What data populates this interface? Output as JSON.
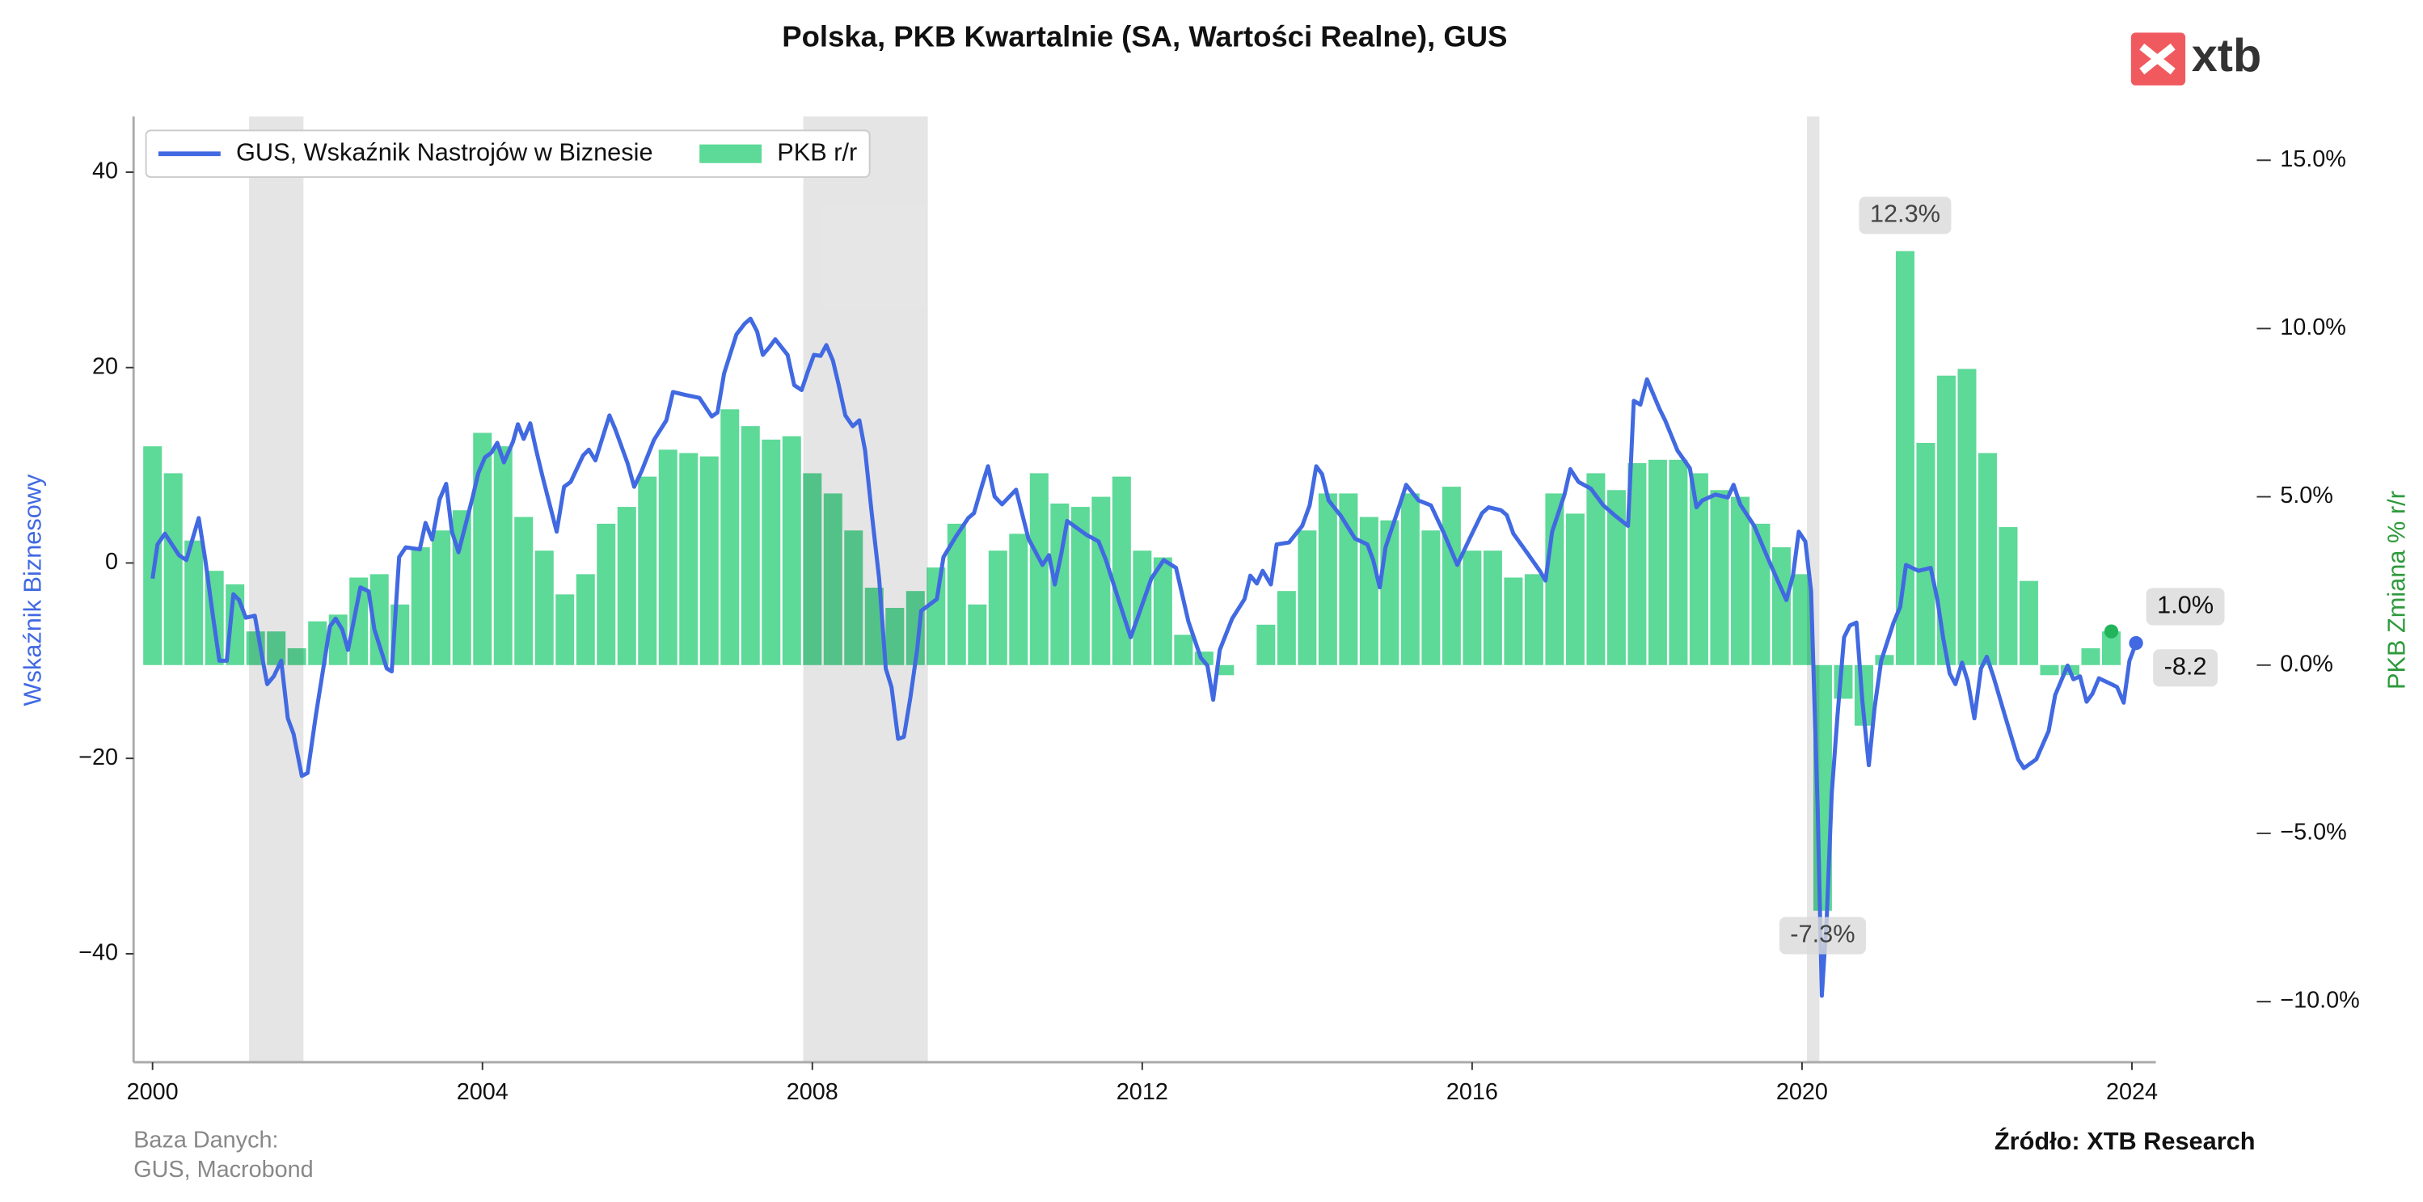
{
  "chart_data": {
    "type": "combo",
    "title": "Polska, PKB Kwartalnie (SA, Wartości Realne), GUS",
    "y_label": "Wskaźnik Biznesowy",
    "y2_label": "PKB Zmiana % r/r",
    "logo": "xtb",
    "source_note": [
      "Baza Danych:",
      "GUS, Macrobond"
    ],
    "source": "Źródło: XTB Research",
    "legend": "upper left",
    "xlim": [
      1999.77,
      2024.29
    ],
    "xticks": [
      2000,
      2004,
      2008,
      2012,
      2016,
      2020,
      2024
    ],
    "ylim": [
      -51.1,
      45.7
    ],
    "yticks": [
      {
        "value": -40,
        "label": "−40"
      },
      {
        "value": -20,
        "label": "−20"
      },
      0,
      20,
      40
    ],
    "y2lim": [
      -11.8,
      16.3
    ],
    "y2ticks": [
      {
        "value": -10,
        "label": "−10.0%"
      },
      {
        "value": -5,
        "label": "−5.0%"
      },
      {
        "value": 0,
        "label": "0.0%"
      },
      {
        "value": 5,
        "label": "5.0%"
      },
      {
        "value": 10,
        "label": "10.0%"
      },
      {
        "value": 15,
        "label": "15.0%"
      }
    ],
    "shaded_ranges": [
      [
        2001.17,
        2001.83
      ],
      [
        2007.89,
        2009.4
      ],
      [
        2020.06,
        2020.21
      ]
    ],
    "series": [
      {
        "name": "GUS, Wskaźnik Nastrojów w Biznesie",
        "type": "line",
        "color": "#4169e1",
        "x": [
          2000.0,
          2000.06,
          2000.15,
          2000.32,
          2000.41,
          2000.56,
          2000.64,
          2000.73,
          2000.81,
          2000.9,
          2000.98,
          2001.05,
          2001.13,
          2001.24,
          2001.32,
          2001.39,
          2001.47,
          2001.56,
          2001.64,
          2001.71,
          2001.81,
          2001.88,
          2001.98,
          2002.07,
          2002.15,
          2002.22,
          2002.3,
          2002.37,
          2002.52,
          2002.62,
          2002.69,
          2002.84,
          2002.9,
          2002.99,
          2003.07,
          2003.24,
          2003.31,
          2003.39,
          2003.48,
          2003.56,
          2003.63,
          2003.71,
          2003.88,
          2003.95,
          2004.03,
          2004.11,
          2004.18,
          2004.26,
          2004.37,
          2004.43,
          2004.5,
          2004.58,
          2004.65,
          2004.73,
          2004.9,
          2004.99,
          2005.07,
          2005.22,
          2005.29,
          2005.37,
          2005.54,
          2005.61,
          2005.76,
          2005.84,
          2005.93,
          2006.08,
          2006.23,
          2006.31,
          2006.46,
          2006.63,
          2006.78,
          2006.85,
          2006.93,
          2007.08,
          2007.18,
          2007.25,
          2007.33,
          2007.4,
          2007.48,
          2007.55,
          2007.7,
          2007.78,
          2007.87,
          2007.95,
          2008.02,
          2008.1,
          2008.17,
          2008.25,
          2008.32,
          2008.4,
          2008.49,
          2008.57,
          2008.64,
          2008.72,
          2008.81,
          2008.89,
          2008.96,
          2009.04,
          2009.11,
          2009.19,
          2009.27,
          2009.32,
          2009.51,
          2009.59,
          2009.74,
          2009.89,
          2009.96,
          2010.06,
          2010.13,
          2010.21,
          2010.3,
          2010.47,
          2010.62,
          2010.79,
          2010.87,
          2010.94,
          2011.02,
          2011.09,
          2011.32,
          2011.47,
          2011.56,
          2011.71,
          2011.86,
          2011.94,
          2012.11,
          2012.26,
          2012.41,
          2012.56,
          2012.71,
          2012.79,
          2012.86,
          2012.94,
          2013.09,
          2013.24,
          2013.31,
          2013.39,
          2013.46,
          2013.56,
          2013.63,
          2013.78,
          2013.94,
          2014.03,
          2014.11,
          2014.18,
          2014.26,
          2014.41,
          2014.58,
          2014.73,
          2014.8,
          2014.88,
          2014.95,
          2015.12,
          2015.2,
          2015.35,
          2015.5,
          2015.65,
          2015.82,
          2015.97,
          2016.12,
          2016.2,
          2016.35,
          2016.42,
          2016.5,
          2016.67,
          2016.82,
          2016.89,
          2016.97,
          2017.12,
          2017.19,
          2017.29,
          2017.44,
          2017.59,
          2017.74,
          2017.89,
          2017.96,
          2018.04,
          2018.12,
          2018.19,
          2018.27,
          2018.34,
          2018.49,
          2018.64,
          2018.72,
          2018.79,
          2018.95,
          2019.1,
          2019.17,
          2019.25,
          2019.42,
          2019.57,
          2019.72,
          2019.81,
          2019.89,
          2019.96,
          2020.04,
          2020.11,
          2020.19,
          2020.24,
          2020.3,
          2020.36,
          2020.43,
          2020.51,
          2020.58,
          2020.66,
          2020.73,
          2020.81,
          2020.88,
          2020.96,
          2021.11,
          2021.19,
          2021.26,
          2021.41,
          2021.56,
          2021.64,
          2021.71,
          2021.79,
          2021.86,
          2021.94,
          2022.01,
          2022.09,
          2022.17,
          2022.24,
          2022.32,
          2022.47,
          2022.62,
          2022.69,
          2022.84,
          2022.99,
          2023.07,
          2023.22,
          2023.29,
          2023.37,
          2023.45,
          2023.52,
          2023.6,
          2023.75,
          2023.82,
          2023.9,
          2023.97,
          2024.05
        ],
        "values": [
          -1.6,
          1.9,
          3.0,
          0.8,
          0.3,
          4.6,
          0.3,
          -5.3,
          -10.0,
          -10.0,
          -3.2,
          -3.8,
          -5.6,
          -5.4,
          -9.2,
          -12.4,
          -11.6,
          -10.0,
          -15.9,
          -17.5,
          -21.8,
          -21.5,
          -15.6,
          -10.8,
          -6.5,
          -5.7,
          -6.8,
          -8.9,
          -2.5,
          -2.9,
          -6.8,
          -10.8,
          -11.1,
          0.6,
          1.6,
          1.4,
          4.1,
          2.4,
          6.5,
          8.1,
          3.2,
          1.1,
          6.7,
          9.2,
          10.8,
          11.3,
          12.3,
          10.3,
          12.4,
          14.2,
          12.7,
          14.3,
          11.6,
          8.8,
          3.2,
          7.8,
          8.3,
          11.0,
          11.6,
          10.5,
          15.1,
          13.7,
          10.2,
          7.8,
          9.4,
          12.6,
          14.6,
          17.5,
          17.2,
          16.9,
          15.0,
          15.4,
          19.4,
          23.4,
          24.5,
          25.0,
          23.7,
          21.3,
          22.1,
          22.9,
          21.3,
          18.2,
          17.7,
          19.7,
          21.3,
          21.2,
          22.3,
          20.7,
          18.2,
          15.1,
          14.0,
          14.6,
          11.5,
          5.1,
          -1.6,
          -10.8,
          -12.7,
          -18.0,
          -17.8,
          -13.7,
          -8.9,
          -4.9,
          -3.7,
          0.6,
          2.7,
          4.6,
          5.1,
          8.0,
          9.9,
          6.8,
          6.0,
          7.5,
          2.5,
          -0.2,
          0.8,
          -2.2,
          1.0,
          4.3,
          2.9,
          2.2,
          0.3,
          -3.7,
          -7.6,
          -5.7,
          -1.6,
          0.3,
          -0.5,
          -6.0,
          -9.7,
          -10.5,
          -14.0,
          -8.9,
          -5.7,
          -3.7,
          -1.3,
          -2.1,
          -0.8,
          -2.2,
          1.9,
          2.1,
          3.8,
          5.9,
          9.9,
          9.1,
          6.4,
          4.8,
          2.5,
          1.9,
          0.3,
          -2.5,
          1.6,
          5.9,
          8.0,
          6.4,
          5.9,
          3.2,
          -0.2,
          2.5,
          5.1,
          5.7,
          5.4,
          4.9,
          3.0,
          1.0,
          -0.8,
          -1.8,
          3.2,
          7.0,
          9.6,
          8.3,
          7.6,
          5.9,
          4.8,
          3.8,
          16.6,
          16.2,
          18.8,
          17.4,
          15.8,
          14.6,
          11.5,
          9.7,
          5.7,
          6.4,
          7.0,
          6.7,
          8.0,
          6.0,
          3.8,
          0.8,
          -2.1,
          -3.8,
          -1.3,
          3.2,
          2.2,
          -2.9,
          -25.2,
          -44.3,
          -36.3,
          -23.6,
          -15.6,
          -7.6,
          -6.4,
          -6.1,
          -14.0,
          -20.7,
          -14.8,
          -10.0,
          -6.1,
          -4.5,
          -0.2,
          -0.8,
          -0.5,
          -3.7,
          -7.6,
          -11.3,
          -12.4,
          -10.2,
          -12.1,
          -15.9,
          -10.8,
          -9.6,
          -11.6,
          -15.9,
          -20.1,
          -21.0,
          -20.1,
          -17.2,
          -13.5,
          -10.5,
          -11.9,
          -11.6,
          -14.2,
          -13.4,
          -11.8,
          -12.4,
          -12.7,
          -14.3,
          -10.0,
          -8.2
        ]
      },
      {
        "name": "PKB r/r",
        "type": "bar",
        "axis": "y2",
        "color": "#5dd998",
        "x": [
          2000,
          2000.25,
          2000.5,
          2000.75,
          2001,
          2001.25,
          2001.5,
          2001.75,
          2002,
          2002.25,
          2002.5,
          2002.75,
          2003,
          2003.25,
          2003.5,
          2003.75,
          2004,
          2004.25,
          2004.5,
          2004.75,
          2005,
          2005.25,
          2005.5,
          2005.75,
          2006,
          2006.25,
          2006.5,
          2006.75,
          2007,
          2007.25,
          2007.5,
          2007.75,
          2008,
          2008.25,
          2008.5,
          2008.75,
          2009,
          2009.25,
          2009.5,
          2009.75,
          2010,
          2010.25,
          2010.5,
          2010.75,
          2011,
          2011.25,
          2011.5,
          2011.75,
          2012,
          2012.25,
          2012.5,
          2012.75,
          2013,
          2013.25,
          2013.5,
          2013.75,
          2014,
          2014.25,
          2014.5,
          2014.75,
          2015,
          2015.25,
          2015.5,
          2015.75,
          2016,
          2016.25,
          2016.5,
          2016.75,
          2017,
          2017.25,
          2017.5,
          2017.75,
          2018,
          2018.25,
          2018.5,
          2018.75,
          2019,
          2019.25,
          2019.5,
          2019.75,
          2020,
          2020.25,
          2020.5,
          2020.75,
          2021,
          2021.25,
          2021.5,
          2021.75,
          2022,
          2022.25,
          2022.5,
          2022.75,
          2023,
          2023.25,
          2023.5,
          2023.75
        ],
        "values": [
          6.5,
          5.7,
          3.7,
          2.8,
          2.4,
          1.0,
          1.0,
          0.5,
          1.3,
          1.5,
          2.6,
          2.7,
          1.8,
          3.5,
          4.0,
          4.6,
          6.9,
          6.5,
          4.4,
          3.4,
          2.1,
          2.7,
          4.2,
          4.7,
          5.6,
          6.4,
          6.3,
          6.2,
          7.6,
          7.1,
          6.7,
          6.8,
          5.7,
          5.1,
          4.0,
          2.3,
          1.7,
          2.2,
          2.9,
          4.2,
          1.8,
          3.4,
          3.9,
          5.7,
          4.8,
          4.7,
          5.0,
          5.6,
          3.4,
          3.2,
          0.9,
          0.4,
          -0.3,
          0.0,
          1.2,
          2.2,
          4.0,
          5.1,
          5.1,
          4.4,
          4.3,
          5.1,
          4.0,
          5.3,
          3.4,
          3.4,
          2.6,
          2.7,
          5.1,
          4.5,
          5.7,
          5.2,
          6.0,
          6.1,
          6.1,
          5.7,
          5.2,
          5.0,
          4.2,
          3.5,
          2.7,
          -7.3,
          -1.0,
          -1.8,
          0.3,
          12.3,
          6.6,
          8.6,
          8.8,
          6.3,
          4.1,
          2.5,
          -0.3,
          -0.3,
          0.5,
          1.0
        ]
      }
    ],
    "annotations": [
      {
        "x": 2021.25,
        "value": 12.3,
        "label": "12.3%",
        "axis": "y2"
      },
      {
        "x": 2020.25,
        "value": -7.3,
        "label": "-7.3%",
        "axis": "y2"
      },
      {
        "x": 2023.75,
        "value": 1.0,
        "label": "1.0%",
        "axis": "y2"
      },
      {
        "x": 2024.05,
        "value": -8.2,
        "label": "-8.2",
        "axis": "y"
      }
    ]
  }
}
